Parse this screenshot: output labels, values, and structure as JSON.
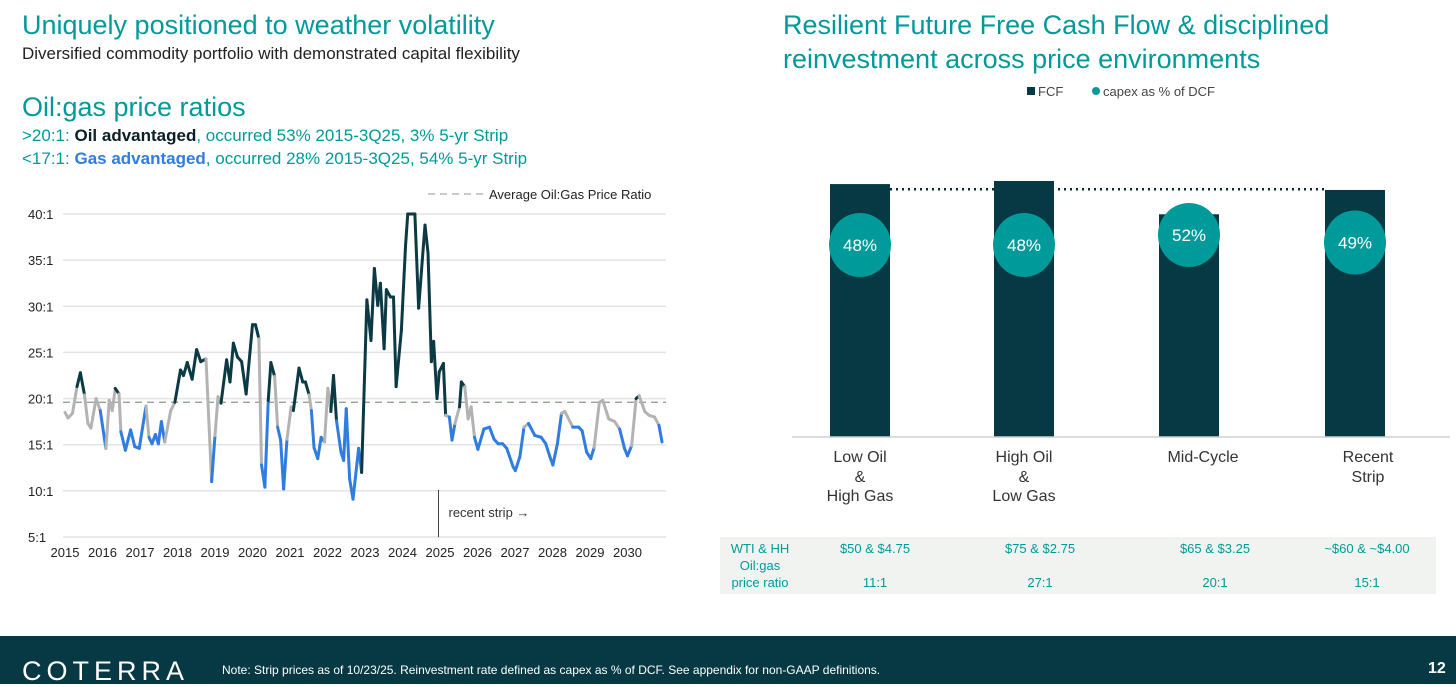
{
  "left": {
    "title": "Uniquely positioned to weather volatility",
    "subtitle": "Diversified commodity portfolio with demonstrated capital flexibility",
    "section_title": "Oil:gas price ratios",
    "oil_line": {
      "prefix": ">20:1: ",
      "bold": "Oil advantaged",
      "rest": ", occurred 53% 2015-3Q25, 3% 5-yr Strip"
    },
    "gas_line": {
      "prefix": "<17:1: ",
      "bold": "Gas advantaged",
      "rest": ", occurred 28% 2015-3Q25, 54% 5-yr Strip"
    }
  },
  "right": {
    "title_line1": "Resilient Future Free Cash Flow & disciplined",
    "title_line2": "reinvestment across price environments",
    "table": {
      "row_label_1": "WTI & HH",
      "row_label_2a": "Oil:gas",
      "row_label_2b": "price ratio",
      "prices": [
        "$50 & $4.75",
        "$75 & $2.75",
        "$65 & $3.25",
        "~$60 & ~$4.00"
      ],
      "ratios": [
        "11:1",
        "27:1",
        "20:1",
        "15:1"
      ]
    }
  },
  "colors": {
    "teal": "#009a9a",
    "dark": "#063944",
    "oil": "#0b3a45",
    "gas": "#2f7de1",
    "neutral": "#b3b3b3",
    "avg": "#8a9a8a"
  },
  "chart_data": [
    {
      "type": "line",
      "title": "Oil:gas price ratios",
      "legend": "Average Oil:Gas Price Ratio",
      "legend_position": "top-right",
      "average_ratio": 19.6,
      "annotation": "recent strip →",
      "annotation_x": 2024.96,
      "ylim": [
        5,
        40
      ],
      "yticks": [
        40,
        35,
        30,
        25,
        20,
        15,
        10,
        5
      ],
      "ytick_labels": [
        "40:1",
        "35:1",
        "30:1",
        "25:1",
        "20:1",
        "15:1",
        "10:1",
        "5:1"
      ],
      "xlim": [
        2015,
        2030.95
      ],
      "xticks": [
        "2015",
        "2016",
        "2017",
        "2018",
        "2019",
        "2020",
        "2021",
        "2022",
        "2023",
        "2024",
        "2025",
        "2026",
        "2027",
        "2028",
        "2029",
        "2030"
      ],
      "oil_threshold": 20,
      "gas_threshold": 17,
      "points": [
        [
          2015.0,
          18.5
        ],
        [
          2015.08,
          17.9
        ],
        [
          2015.2,
          18.4
        ],
        [
          2015.32,
          21.3
        ],
        [
          2015.41,
          22.8
        ],
        [
          2015.52,
          20.4
        ],
        [
          2015.61,
          17.3
        ],
        [
          2015.69,
          16.8
        ],
        [
          2015.83,
          20
        ],
        [
          2015.94,
          18.7
        ],
        [
          2016.09,
          14.6
        ],
        [
          2016.18,
          19.8
        ],
        [
          2016.26,
          18.7
        ],
        [
          2016.34,
          21.1
        ],
        [
          2016.44,
          20.5
        ],
        [
          2016.49,
          16.4
        ],
        [
          2016.61,
          14.4
        ],
        [
          2016.75,
          16.6
        ],
        [
          2016.86,
          14.8
        ],
        [
          2016.98,
          14.6
        ],
        [
          2017.16,
          19.2
        ],
        [
          2017.24,
          15.8
        ],
        [
          2017.32,
          15.1
        ],
        [
          2017.41,
          16.1
        ],
        [
          2017.49,
          15.1
        ],
        [
          2017.57,
          17.5
        ],
        [
          2017.66,
          15.3
        ],
        [
          2017.82,
          18.7
        ],
        [
          2017.93,
          19.6
        ],
        [
          2018.08,
          23.1
        ],
        [
          2018.16,
          22.5
        ],
        [
          2018.26,
          23.9
        ],
        [
          2018.39,
          22.1
        ],
        [
          2018.51,
          25.3
        ],
        [
          2018.62,
          24
        ],
        [
          2018.76,
          24.3
        ],
        [
          2018.91,
          11
        ],
        [
          2019.0,
          16
        ],
        [
          2019.08,
          20.2
        ],
        [
          2019.16,
          19.5
        ],
        [
          2019.31,
          24.2
        ],
        [
          2019.4,
          21.8
        ],
        [
          2019.49,
          26
        ],
        [
          2019.6,
          24.5
        ],
        [
          2019.71,
          24
        ],
        [
          2019.83,
          20.5
        ],
        [
          2020.0,
          28
        ],
        [
          2020.08,
          28
        ],
        [
          2020.17,
          26.5
        ],
        [
          2020.24,
          12.8
        ],
        [
          2020.33,
          10.4
        ],
        [
          2020.42,
          19.8
        ],
        [
          2020.49,
          23.9
        ],
        [
          2020.59,
          22.4
        ],
        [
          2020.67,
          16.9
        ],
        [
          2020.75,
          15.5
        ],
        [
          2020.83,
          10.2
        ],
        [
          2020.92,
          15.6
        ],
        [
          2021.03,
          19.1
        ],
        [
          2021.09,
          18.7
        ],
        [
          2021.24,
          23.3
        ],
        [
          2021.34,
          21.8
        ],
        [
          2021.41,
          21.8
        ],
        [
          2021.51,
          20.4
        ],
        [
          2021.57,
          18.7
        ],
        [
          2021.64,
          14.7
        ],
        [
          2021.74,
          13.5
        ],
        [
          2021.83,
          15.8
        ],
        [
          2021.92,
          15.3
        ],
        [
          2022.01,
          21.1
        ],
        [
          2022.09,
          18.6
        ],
        [
          2022.16,
          22.5
        ],
        [
          2022.24,
          17.6
        ],
        [
          2022.36,
          14.2
        ],
        [
          2022.43,
          13.3
        ],
        [
          2022.5,
          18.9
        ],
        [
          2022.59,
          11.3
        ],
        [
          2022.68,
          9.1
        ],
        [
          2022.83,
          14.6
        ],
        [
          2022.91,
          12
        ],
        [
          2023.05,
          30.7
        ],
        [
          2023.16,
          26.3
        ],
        [
          2023.25,
          34.1
        ],
        [
          2023.34,
          30.1
        ],
        [
          2023.41,
          32.5
        ],
        [
          2023.51,
          25.4
        ],
        [
          2023.57,
          31.8
        ],
        [
          2023.68,
          31
        ],
        [
          2023.76,
          31
        ],
        [
          2023.83,
          21.3
        ],
        [
          2023.97,
          27.4
        ],
        [
          2024.08,
          36.5
        ],
        [
          2024.14,
          40
        ],
        [
          2024.33,
          40
        ],
        [
          2024.43,
          29.8
        ],
        [
          2024.6,
          38.8
        ],
        [
          2024.68,
          35.8
        ],
        [
          2024.77,
          24
        ],
        [
          2024.83,
          26.2
        ],
        [
          2024.92,
          20
        ],
        [
          2024.98,
          22.9
        ],
        [
          2025.09,
          23.8
        ],
        [
          2025.15,
          18.2
        ],
        [
          2025.25,
          18
        ],
        [
          2025.32,
          15.5
        ],
        [
          2025.4,
          17.3
        ],
        [
          2025.52,
          19.1
        ],
        [
          2025.57,
          21.8
        ],
        [
          2025.66,
          21.3
        ],
        [
          2025.75,
          17.8
        ],
        [
          2025.83,
          19.1
        ],
        [
          2025.92,
          15.8
        ],
        [
          2026.01,
          14.5
        ],
        [
          2026.17,
          16.7
        ],
        [
          2026.32,
          16.9
        ],
        [
          2026.44,
          15.6
        ],
        [
          2026.55,
          15.1
        ],
        [
          2026.67,
          15.1
        ],
        [
          2026.78,
          14.6
        ],
        [
          2026.95,
          12.6
        ],
        [
          2027.01,
          12.2
        ],
        [
          2027.13,
          13.7
        ],
        [
          2027.24,
          16.9
        ],
        [
          2027.36,
          17.3
        ],
        [
          2027.53,
          16
        ],
        [
          2027.7,
          15.8
        ],
        [
          2027.82,
          15.1
        ],
        [
          2027.93,
          13.7
        ],
        [
          2028.01,
          12.8
        ],
        [
          2028.13,
          15.1
        ],
        [
          2028.24,
          18.4
        ],
        [
          2028.33,
          18.6
        ],
        [
          2028.54,
          16.9
        ],
        [
          2028.7,
          16.9
        ],
        [
          2028.79,
          16.5
        ],
        [
          2028.91,
          14.2
        ],
        [
          2029.02,
          13.5
        ],
        [
          2029.11,
          14.7
        ],
        [
          2029.25,
          19.6
        ],
        [
          2029.34,
          19.8
        ],
        [
          2029.5,
          17.8
        ],
        [
          2029.66,
          17.5
        ],
        [
          2029.79,
          16.7
        ],
        [
          2029.92,
          14.6
        ],
        [
          2030.0,
          13.8
        ],
        [
          2030.11,
          14.9
        ],
        [
          2030.23,
          20
        ],
        [
          2030.31,
          20.3
        ],
        [
          2030.46,
          18.6
        ],
        [
          2030.57,
          18.2
        ],
        [
          2030.72,
          18
        ],
        [
          2030.84,
          17.1
        ],
        [
          2030.92,
          15.3
        ]
      ]
    },
    {
      "type": "bar",
      "legend": [
        "FCF",
        "capex as % of DCF"
      ],
      "legend_position": "top-center",
      "categories": [
        [
          "Low Oil",
          "&",
          "High Gas"
        ],
        [
          "High Oil",
          "&",
          "Low Gas"
        ],
        [
          "Mid-Cycle"
        ],
        [
          "Recent",
          "Strip"
        ]
      ],
      "fcf_relative": [
        98.8,
        100,
        87,
        96.5
      ],
      "fcf_reference_level": 96.8,
      "capex_pct_of_dcf": [
        48,
        48,
        52,
        49
      ],
      "capex_labels": [
        "48%",
        "48%",
        "52%",
        "49%"
      ]
    }
  ],
  "footer": {
    "logo": "COTERRA",
    "note": "Note: Strip prices as of 10/23/25. Reinvestment rate defined as capex as % of DCF. See appendix for non-GAAP definitions.",
    "page_number": "12"
  }
}
